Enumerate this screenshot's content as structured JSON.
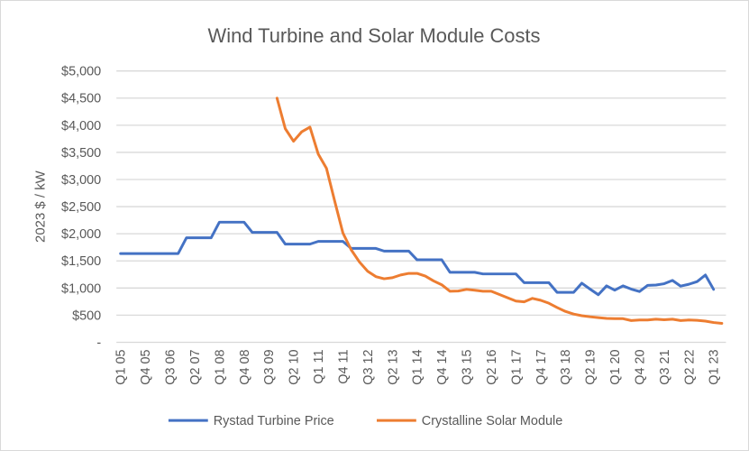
{
  "chart_data": {
    "type": "line",
    "title": "Wind Turbine and Solar Module Costs",
    "xlabel": "",
    "ylabel": "2023 $ / kW",
    "ylim": [
      0,
      5000
    ],
    "y_ticks": [
      0,
      500,
      1000,
      1500,
      2000,
      2500,
      3000,
      3500,
      4000,
      4500,
      5000
    ],
    "y_tick_labels": [
      "-",
      "$500",
      "$1,000",
      "$1,500",
      "$2,000",
      "$2,500",
      "$3,000",
      "$3,500",
      "$4,000",
      "$4,500",
      "$5,000"
    ],
    "quarters_per_x_tick": 3,
    "x_tick_labels": [
      "Q1 05",
      "Q4 05",
      "Q3 06",
      "Q2 07",
      "Q1 08",
      "Q4 08",
      "Q3 09",
      "Q2 10",
      "Q1 11",
      "Q4 11",
      "Q3 12",
      "Q2 13",
      "Q1 14",
      "Q4 14",
      "Q3 15",
      "Q2 16",
      "Q1 17",
      "Q4 17",
      "Q3 18",
      "Q2 19",
      "Q1 20",
      "Q4 20",
      "Q3 21",
      "Q2 22",
      "Q1 23"
    ],
    "n_points": 74,
    "grid": true,
    "legend_position": "bottom",
    "series": [
      {
        "name": "Rystad Turbine Price",
        "color": "#4472C4",
        "values": [
          1635,
          1635,
          1635,
          1635,
          1635,
          1635,
          1635,
          1635,
          1925,
          1925,
          1925,
          1925,
          2213,
          2213,
          2213,
          2213,
          2025,
          2025,
          2025,
          2025,
          1810,
          1810,
          1810,
          1810,
          1860,
          1860,
          1860,
          1860,
          1730,
          1730,
          1730,
          1730,
          1680,
          1680,
          1680,
          1680,
          1520,
          1520,
          1520,
          1520,
          1290,
          1290,
          1290,
          1290,
          1260,
          1260,
          1260,
          1260,
          1260,
          1100,
          1100,
          1100,
          1100,
          920,
          920,
          920,
          1090,
          980,
          875,
          1040,
          960,
          1040,
          980,
          935,
          1050,
          1055,
          1080,
          1140,
          1035,
          1070,
          1120,
          1240,
          975,
          null
        ]
      },
      {
        "name": "Crystalline Solar Module",
        "color": "#ED7D31",
        "values": [
          null,
          null,
          null,
          null,
          null,
          null,
          null,
          null,
          null,
          null,
          null,
          null,
          null,
          null,
          null,
          null,
          null,
          null,
          null,
          4500,
          3937,
          3705,
          3880,
          3965,
          3470,
          3205,
          2600,
          2015,
          1705,
          1480,
          1310,
          1210,
          1170,
          1190,
          1240,
          1270,
          1270,
          1220,
          1130,
          1060,
          940,
          945,
          975,
          960,
          940,
          940,
          880,
          820,
          760,
          745,
          810,
          775,
          720,
          640,
          570,
          520,
          490,
          470,
          455,
          440,
          435,
          435,
          400,
          410,
          410,
          425,
          415,
          425,
          400,
          410,
          405,
          390,
          365,
          350
        ]
      }
    ]
  }
}
